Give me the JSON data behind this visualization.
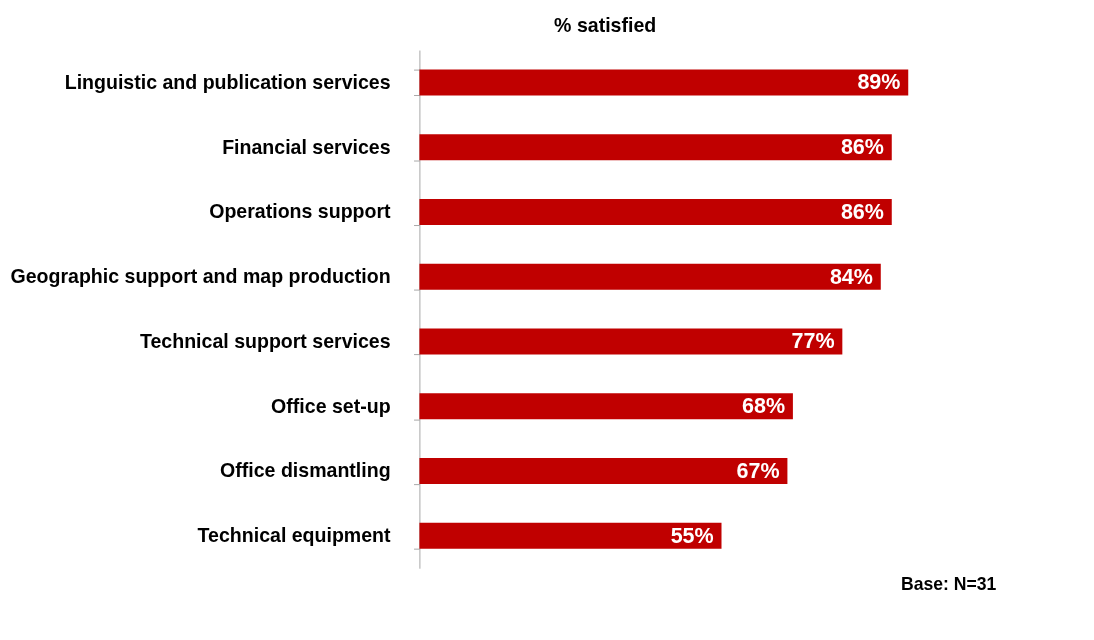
{
  "chart_data": {
    "type": "bar",
    "orientation": "horizontal",
    "title": "% satisfied",
    "categories": [
      "Linguistic and publication services",
      "Financial services",
      "Operations support",
      "Geographic support and map production",
      "Technical support services",
      "Office set-up",
      "Office dismantling",
      "Technical equipment"
    ],
    "values": [
      89,
      86,
      86,
      84,
      77,
      68,
      67,
      55
    ],
    "value_labels": [
      "89%",
      "86%",
      "86%",
      "84%",
      "77%",
      "68%",
      "67%",
      "55%"
    ],
    "color": "#c00000",
    "annotations": [
      "Base: N=31"
    ]
  }
}
